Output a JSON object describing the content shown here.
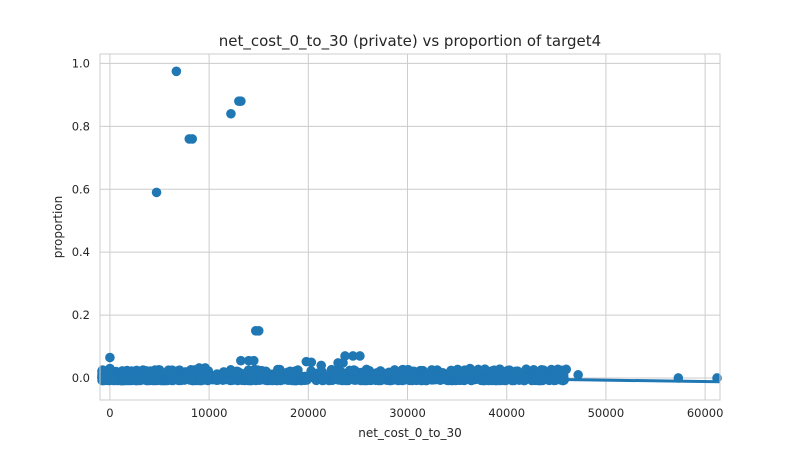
{
  "chart_data": {
    "type": "scatter",
    "title": "net_cost_0_to_30 (private) vs proportion of target4",
    "xlabel": "net_cost_0_to_30",
    "ylabel": "proportion",
    "xlim": [
      -1000,
      61500
    ],
    "ylim": [
      -0.07,
      1.03
    ],
    "xticks": [
      0,
      10000,
      20000,
      30000,
      40000,
      50000,
      60000
    ],
    "xtick_labels": [
      "0",
      "10000",
      "20000",
      "30000",
      "40000",
      "50000",
      "60000"
    ],
    "yticks": [
      0.0,
      0.2,
      0.4,
      0.6,
      0.8,
      1.0
    ],
    "ytick_labels": [
      "0.0",
      "0.2",
      "0.4",
      "0.6",
      "0.8",
      "1.0"
    ],
    "grid": true,
    "color": "#1f77b4",
    "regression_line": {
      "x": [
        -1000,
        61500
      ],
      "y": [
        0.016,
        -0.012
      ]
    },
    "outliers": [
      {
        "x": 6700,
        "y": 0.975
      },
      {
        "x": 13000,
        "y": 0.88
      },
      {
        "x": 13200,
        "y": 0.88
      },
      {
        "x": 8000,
        "y": 0.76
      },
      {
        "x": 8300,
        "y": 0.76
      },
      {
        "x": 12200,
        "y": 0.84
      },
      {
        "x": 4700,
        "y": 0.59
      },
      {
        "x": 14700,
        "y": 0.15
      },
      {
        "x": 15000,
        "y": 0.15
      },
      {
        "x": 0,
        "y": 0.065
      },
      {
        "x": 13200,
        "y": 0.055
      },
      {
        "x": 14000,
        "y": 0.055
      },
      {
        "x": 14500,
        "y": 0.055
      },
      {
        "x": 23700,
        "y": 0.07
      },
      {
        "x": 24500,
        "y": 0.07
      },
      {
        "x": 25200,
        "y": 0.07
      },
      {
        "x": 3700,
        "y": 0.022
      },
      {
        "x": 4100,
        "y": 0.022
      },
      {
        "x": 9000,
        "y": 0.032
      },
      {
        "x": 9600,
        "y": 0.032
      },
      {
        "x": 19800,
        "y": 0.052
      },
      {
        "x": 20300,
        "y": 0.05
      },
      {
        "x": 23000,
        "y": 0.048
      },
      {
        "x": 23500,
        "y": 0.048
      },
      {
        "x": 21300,
        "y": 0.04
      },
      {
        "x": 36300,
        "y": 0.03
      },
      {
        "x": 37800,
        "y": 0.028
      },
      {
        "x": 39300,
        "y": 0.028
      },
      {
        "x": 0,
        "y": 0.03
      },
      {
        "x": 57300,
        "y": 0.0
      },
      {
        "x": 61200,
        "y": 0.0
      },
      {
        "x": 47200,
        "y": 0.01
      }
    ],
    "dense_cluster": {
      "x_range": [
        -800,
        46000
      ],
      "y_range": [
        -0.008,
        0.028
      ],
      "count": 900
    }
  }
}
